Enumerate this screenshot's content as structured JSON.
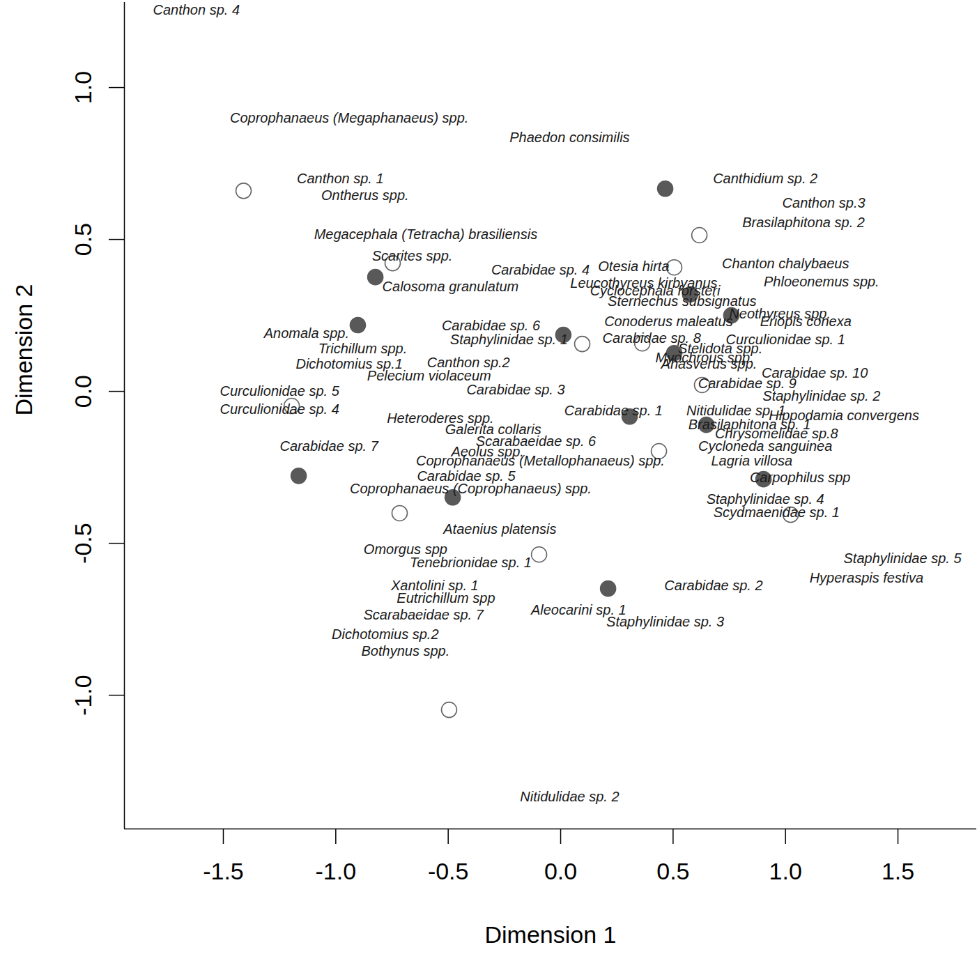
{
  "chart_data": {
    "type": "scatter",
    "x_label": "Dimension 1",
    "y_label": "Dimension 2",
    "xlim": [
      -1.94,
      1.85
    ],
    "ylim": [
      -1.44,
      1.28
    ],
    "xticks": [
      -1.5,
      {
        "value": -1,
        "label": "-1.0"
      },
      -0.5,
      {
        "value": 0,
        "label": "0.0"
      },
      0.5,
      {
        "value": 1,
        "label": "1.0"
      },
      1.5
    ],
    "yticks": [
      {
        "value": -1,
        "label": "-1.0"
      },
      -0.5,
      {
        "value": 0,
        "label": "0.0"
      },
      0.5,
      {
        "value": 1,
        "label": "1.0"
      }
    ],
    "series": [
      {
        "marker": "circle-filled",
        "color": "#595959",
        "x": [
          0.465,
          -0.824,
          -0.902,
          0.012,
          0.576,
          0.759,
          0.505,
          0.307,
          0.648,
          -1.165,
          0.902,
          -0.48,
          0.211
        ],
        "y": [
          0.667,
          0.376,
          0.218,
          0.186,
          0.319,
          0.25,
          0.126,
          -0.083,
          -0.11,
          -0.278,
          -0.289,
          -0.349,
          -0.649
        ]
      },
      {
        "marker": "circle-open",
        "color": "#666666",
        "x": [
          -1.41,
          -0.747,
          0.505,
          0.617,
          0.096,
          0.363,
          0.629,
          -1.196,
          0.437,
          1.023,
          -0.716,
          -0.096,
          -0.496
        ],
        "y": [
          0.66,
          0.422,
          0.408,
          0.514,
          0.156,
          0.158,
          0.021,
          -0.048,
          -0.197,
          -0.406,
          -0.401,
          -0.537,
          -1.048
        ]
      }
    ],
    "annotations": [
      {
        "text": "Canthon sp. 4",
        "x": -1.62,
        "y": 1.255
      },
      {
        "text": "Coprophanaeus (Megaphanaeus) spp.",
        "x": -0.94,
        "y": 0.9
      },
      {
        "text": "Phaedon consimilis",
        "x": 0.04,
        "y": 0.835
      },
      {
        "text": "Canthon sp. 1",
        "x": -0.98,
        "y": 0.7
      },
      {
        "text": "Ontherus spp.",
        "x": -0.87,
        "y": 0.645
      },
      {
        "text": "Canthidium sp. 2",
        "x": 0.91,
        "y": 0.7
      },
      {
        "text": "Canthon sp.3",
        "x": 1.17,
        "y": 0.62
      },
      {
        "text": "Brasilaphitona sp. 2",
        "x": 1.08,
        "y": 0.555
      },
      {
        "text": "Megacephala (Tetracha) brasiliensis",
        "x": -0.6,
        "y": 0.515
      },
      {
        "text": "Scarites spp.",
        "x": -0.66,
        "y": 0.445
      },
      {
        "text": "Carabidae sp. 4",
        "x": -0.09,
        "y": 0.4
      },
      {
        "text": "Otesia hirta",
        "x": 0.325,
        "y": 0.41
      },
      {
        "text": "Chanton chalybaeus",
        "x": 1.0,
        "y": 0.42
      },
      {
        "text": "Calosoma granulatum",
        "x": -0.49,
        "y": 0.345
      },
      {
        "text": "Leucothyreus kirbyanus",
        "x": 0.37,
        "y": 0.355
      },
      {
        "text": "Phloeonemus spp.",
        "x": 1.16,
        "y": 0.36
      },
      {
        "text": "Cyclocephala forsteri",
        "x": 0.42,
        "y": 0.33
      },
      {
        "text": "Sternechus subsignatus",
        "x": 0.54,
        "y": 0.295
      },
      {
        "text": "Neothyreus spp.",
        "x": 0.975,
        "y": 0.255
      },
      {
        "text": "Anomala spp.",
        "x": -1.13,
        "y": 0.19
      },
      {
        "text": "Carabidae sp. 6",
        "x": -0.31,
        "y": 0.215
      },
      {
        "text": "Conoderus maleatus",
        "x": 0.48,
        "y": 0.23
      },
      {
        "text": "Eriopis conexa",
        "x": 1.09,
        "y": 0.23
      },
      {
        "text": "Staphylinidae sp. 1",
        "x": -0.23,
        "y": 0.17
      },
      {
        "text": "Carabidae sp. 8",
        "x": 0.405,
        "y": 0.175
      },
      {
        "text": "Curculionidae sp. 1",
        "x": 1.0,
        "y": 0.17
      },
      {
        "text": "Trichillum spp.",
        "x": -0.88,
        "y": 0.14
      },
      {
        "text": "Stelidota spp.",
        "x": 0.71,
        "y": 0.14
      },
      {
        "text": "Myochrous spp.",
        "x": 0.64,
        "y": 0.11
      },
      {
        "text": "Dichotomius sp.1",
        "x": -0.94,
        "y": 0.09
      },
      {
        "text": "Canthon sp.2",
        "x": -0.41,
        "y": 0.095
      },
      {
        "text": "Ahasverus spp.",
        "x": 0.66,
        "y": 0.09
      },
      {
        "text": "Carabidae sp. 10",
        "x": 1.13,
        "y": 0.06
      },
      {
        "text": "Pelecium violaceum",
        "x": -0.585,
        "y": 0.05
      },
      {
        "text": "Carabidae sp. 3",
        "x": -0.2,
        "y": 0.005
      },
      {
        "text": "Carabidae sp. 9",
        "x": 0.83,
        "y": 0.025
      },
      {
        "text": "Curculionidae sp. 5",
        "x": -1.25,
        "y": 0.0
      },
      {
        "text": "Staphylinidae sp. 2",
        "x": 1.16,
        "y": -0.015
      },
      {
        "text": "Curculionidae sp. 4",
        "x": -1.25,
        "y": -0.06
      },
      {
        "text": "Carabidae sp. 1",
        "x": 0.235,
        "y": -0.065
      },
      {
        "text": "Nitidulidae sp. 1",
        "x": 0.78,
        "y": -0.065
      },
      {
        "text": "Hippodamia convergens",
        "x": 1.26,
        "y": -0.08
      },
      {
        "text": "Heteroderes spp.",
        "x": -0.535,
        "y": -0.09
      },
      {
        "text": "Brasilaphitona sp. 1",
        "x": 0.84,
        "y": -0.11
      },
      {
        "text": "Galerita collaris",
        "x": -0.3,
        "y": -0.125
      },
      {
        "text": "Chrysomelidae sp.8",
        "x": 0.96,
        "y": -0.14
      },
      {
        "text": "Scarabaeidae sp. 6",
        "x": -0.11,
        "y": -0.165
      },
      {
        "text": "Carabidae sp. 7",
        "x": -1.03,
        "y": -0.18
      },
      {
        "text": "Cycloneda sanguinea",
        "x": 0.91,
        "y": -0.18
      },
      {
        "text": "Aeolus spp.",
        "x": -0.325,
        "y": -0.2
      },
      {
        "text": "Coprophanaeus (Metallophanaeus) spp.",
        "x": -0.09,
        "y": -0.23
      },
      {
        "text": "Lagria villosa",
        "x": 0.85,
        "y": -0.23
      },
      {
        "text": "Carabidae sp. 5",
        "x": -0.42,
        "y": -0.28
      },
      {
        "text": "Carpophilus spp",
        "x": 1.065,
        "y": -0.285
      },
      {
        "text": "Coprophanaeus (Coprophanaeus) spp.",
        "x": -0.4,
        "y": -0.32
      },
      {
        "text": "Staphylinidae sp. 4",
        "x": 0.91,
        "y": -0.355
      },
      {
        "text": "Scydmaenidae sp. 1",
        "x": 0.96,
        "y": -0.4
      },
      {
        "text": "Ataenius platensis",
        "x": -0.27,
        "y": -0.455
      },
      {
        "text": "Omorgus spp",
        "x": -0.69,
        "y": -0.52
      },
      {
        "text": "Staphylinidae sp. 5",
        "x": 1.52,
        "y": -0.55
      },
      {
        "text": "Tenebrionidae sp. 1",
        "x": -0.4,
        "y": -0.565
      },
      {
        "text": "Hyperaspis festiva",
        "x": 1.36,
        "y": -0.615
      },
      {
        "text": "Xantolini sp. 1",
        "x": -0.56,
        "y": -0.64
      },
      {
        "text": "Carabidae sp. 2",
        "x": 0.68,
        "y": -0.64
      },
      {
        "text": "Eutrichillum spp",
        "x": -0.51,
        "y": -0.68
      },
      {
        "text": "Aleocarini sp. 1",
        "x": 0.08,
        "y": -0.72
      },
      {
        "text": "Scarabaeidae sp. 7",
        "x": -0.61,
        "y": -0.735
      },
      {
        "text": "Staphylinidae sp. 3",
        "x": 0.465,
        "y": -0.76
      },
      {
        "text": "Dichotomius sp.2",
        "x": -0.78,
        "y": -0.8
      },
      {
        "text": "Bothynus spp.",
        "x": -0.69,
        "y": -0.855
      },
      {
        "text": "Nitidulidae sp. 2",
        "x": 0.04,
        "y": -1.335
      }
    ]
  }
}
